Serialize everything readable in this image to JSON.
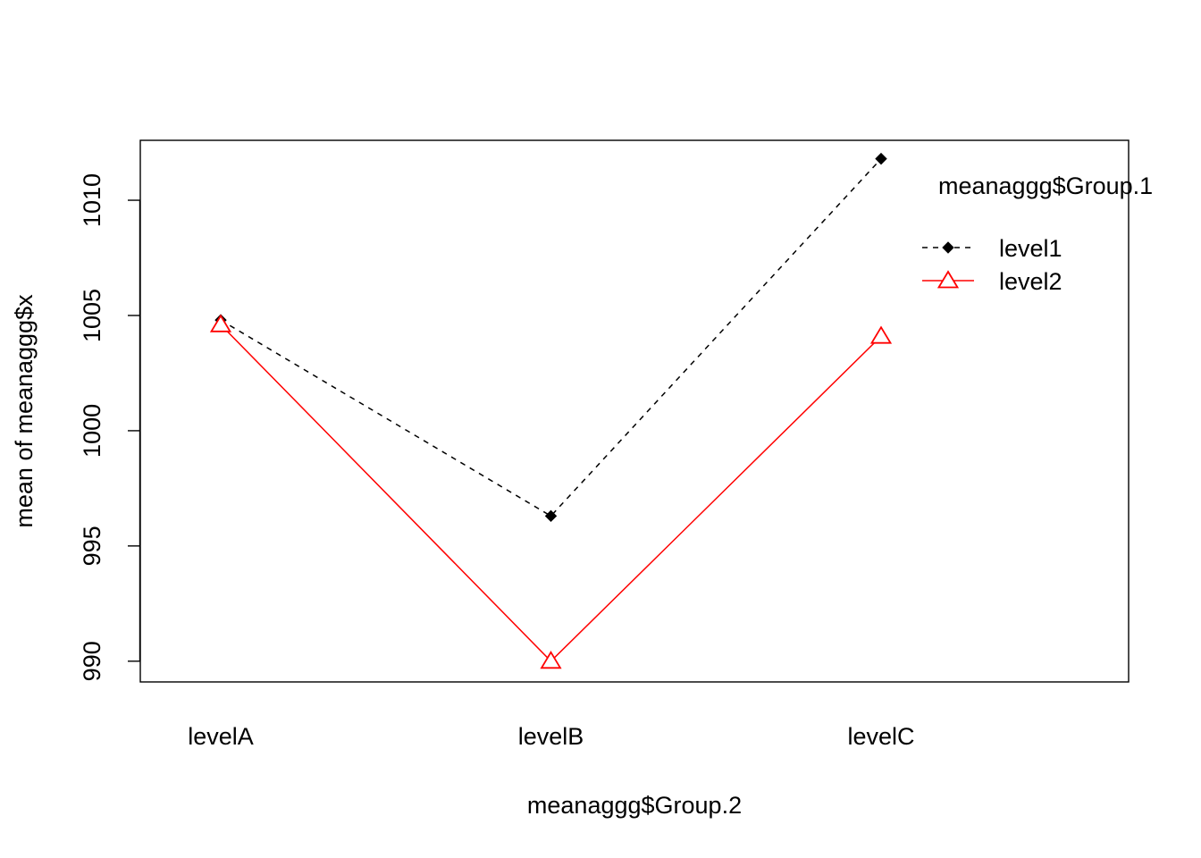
{
  "chart_data": {
    "type": "line",
    "title": "",
    "xlabel": "meanaggg$Group.2",
    "ylabel": "mean of  meanaggg$x",
    "categories": [
      "levelA",
      "levelB",
      "levelC"
    ],
    "ylim": [
      989.1,
      1012.6
    ],
    "yticks": [
      990,
      995,
      1000,
      1005,
      1010
    ],
    "grid": false,
    "legend": {
      "title": "meanaggg$Group.1",
      "placement": "top-right"
    },
    "series": [
      {
        "name": "level1",
        "values": [
          1004.8,
          996.3,
          1011.8
        ],
        "color": "#000000",
        "line": "dashed",
        "marker": "filled-diamond"
      },
      {
        "name": "level2",
        "values": [
          1004.6,
          990.0,
          1004.1
        ],
        "color": "#ff0000",
        "line": "solid",
        "marker": "open-triangle"
      }
    ]
  }
}
